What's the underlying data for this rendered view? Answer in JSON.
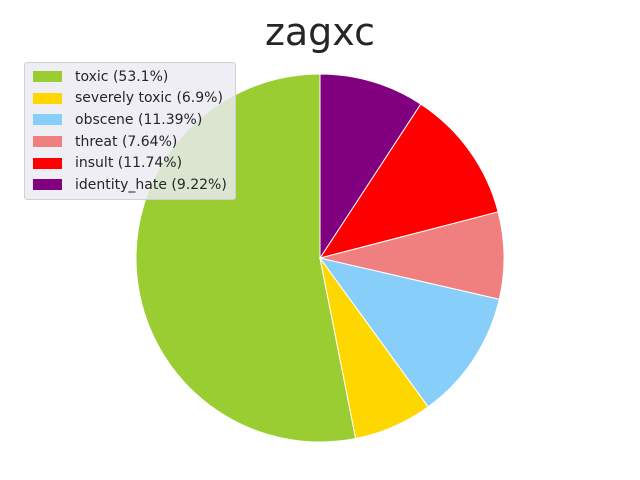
{
  "chart_data": {
    "type": "pie",
    "title": "zagxc",
    "legend_position": "top-left",
    "start_angle_deg": 90,
    "direction": "counterclockwise",
    "slices": [
      {
        "label": "toxic (53.1%)",
        "value": 53.1,
        "color": "#9ACD32"
      },
      {
        "label": "severely toxic (6.9%)",
        "value": 6.9,
        "color": "#FFD700"
      },
      {
        "label": "obscene (11.39%)",
        "value": 11.39,
        "color": "#87CEFA"
      },
      {
        "label": "threat (7.64%)",
        "value": 7.64,
        "color": "#F08080"
      },
      {
        "label": "insult (11.74%)",
        "value": 11.74,
        "color": "#FF0000"
      },
      {
        "label": "identity_hate (9.22%)",
        "value": 9.22,
        "color": "#800080"
      }
    ]
  }
}
